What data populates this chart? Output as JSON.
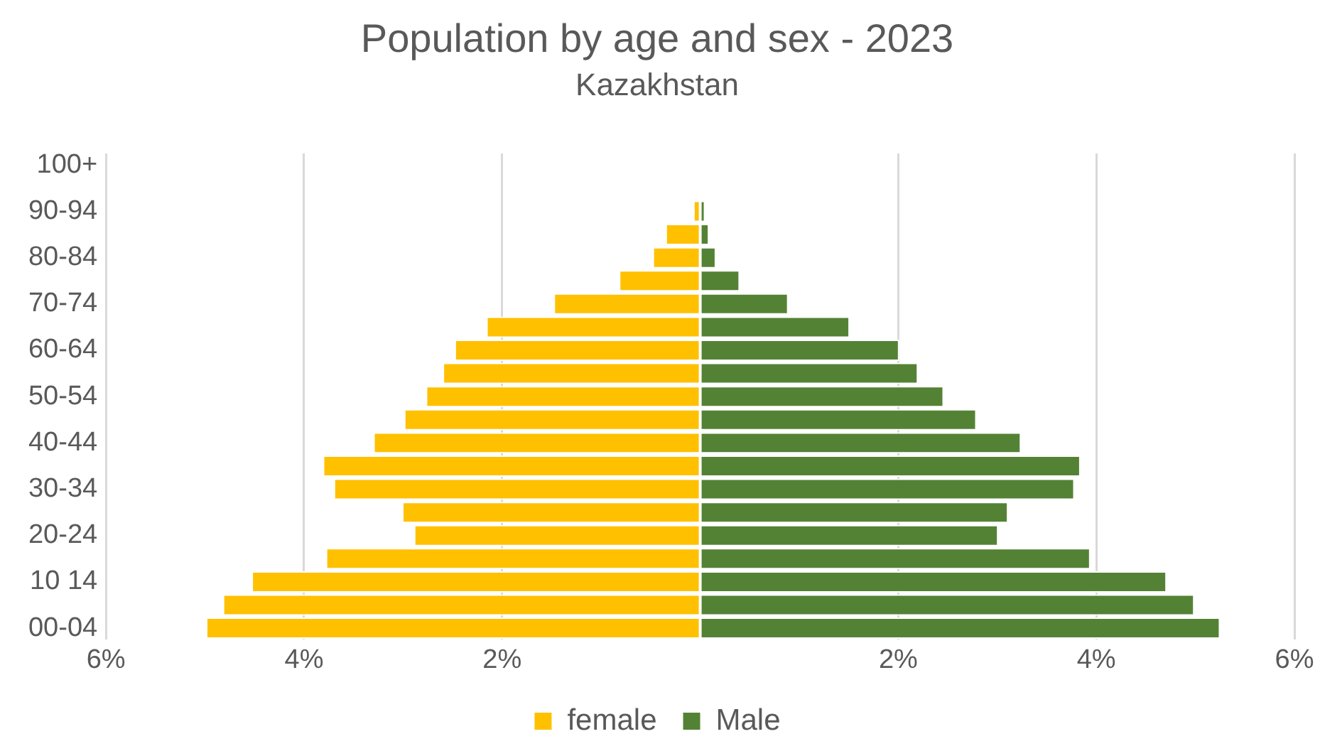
{
  "chart_data": {
    "type": "bar",
    "title": "Population by age and sex - 2023",
    "subtitle": "Kazakhstan",
    "orientation": "horizontal",
    "stacked": true,
    "categories": [
      "100+",
      null,
      "90-94",
      null,
      "80-84",
      null,
      "70-74",
      null,
      "60-64",
      null,
      "50-54",
      null,
      "40-44",
      null,
      "30-34",
      null,
      "20-24",
      null,
      "10 14",
      null,
      "00-04"
    ],
    "series": [
      {
        "name": "female",
        "color": "#ffc000",
        "values": [
          null,
          null,
          -0.07,
          -0.35,
          -0.48,
          -0.82,
          -1.48,
          -2.16,
          -2.48,
          -2.6,
          -2.77,
          -2.99,
          -3.3,
          -3.81,
          -3.7,
          -3.01,
          -2.89,
          -3.78,
          -4.53,
          -4.82,
          -4.99
        ]
      },
      {
        "name": "Male",
        "color": "#548235",
        "values": [
          null,
          null,
          0.05,
          0.09,
          0.16,
          0.4,
          0.89,
          1.51,
          2.01,
          2.2,
          2.46,
          2.79,
          3.24,
          3.84,
          3.78,
          3.11,
          3.01,
          3.94,
          4.71,
          4.99,
          5.25
        ]
      }
    ],
    "xlim": [
      -6,
      6
    ],
    "xticks": [
      {
        "value": -6,
        "label": "6%"
      },
      {
        "value": -4,
        "label": "4%"
      },
      {
        "value": -2,
        "label": "2%"
      },
      {
        "value": 2,
        "label": "2%"
      },
      {
        "value": 4,
        "label": "4%"
      },
      {
        "value": 6,
        "label": "6%"
      }
    ],
    "grid": "x",
    "legend": "bottom"
  }
}
